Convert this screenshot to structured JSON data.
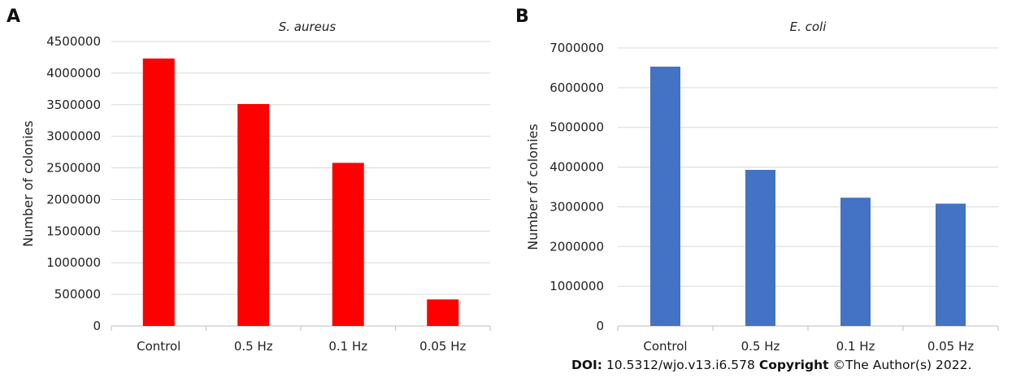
{
  "chart_data": [
    {
      "type": "bar",
      "panel_label": "A",
      "title": "S. aureus",
      "ylabel": "Number of colonies",
      "xlabel": "",
      "categories": [
        "Control",
        "0.5 Hz",
        "0.1 Hz",
        "0.05 Hz"
      ],
      "values": [
        4230000,
        3510000,
        2580000,
        420000
      ],
      "ylim": [
        0,
        4500000
      ],
      "yticks": [
        "0",
        "500000",
        "1000000",
        "1500000",
        "2000000",
        "2500000",
        "3000000",
        "3500000",
        "4000000",
        "4500000"
      ],
      "color": "#ff0000",
      "grid": true
    },
    {
      "type": "bar",
      "panel_label": "B",
      "title": "E. coli",
      "ylabel": "Number of colonies",
      "xlabel": "",
      "categories": [
        "Control",
        "0.5 Hz",
        "0.1 Hz",
        "0.05 Hz"
      ],
      "values": [
        6530000,
        3930000,
        3230000,
        3080000
      ],
      "ylim": [
        0,
        7000000
      ],
      "yticks": [
        "0",
        "1000000",
        "2000000",
        "3000000",
        "4000000",
        "5000000",
        "6000000",
        "7000000"
      ],
      "color": "#4472c4",
      "grid": true
    }
  ],
  "footer": {
    "doi_label": "DOI:",
    "doi_value": " 10.5312/wjo.v13.i6.578 ",
    "copyright_label": "Copyright",
    "copyright_value": " ©The Author(s) 2022."
  }
}
